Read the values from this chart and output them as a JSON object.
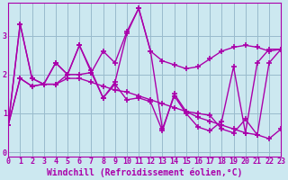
{
  "xlabel": "Windchill (Refroidissement éolien,°C)",
  "bg_color": "#cce8f0",
  "line_color": "#aa00aa",
  "grid_color": "#99bbcc",
  "x_ticks": [
    0,
    1,
    2,
    3,
    4,
    5,
    6,
    7,
    8,
    9,
    10,
    11,
    12,
    13,
    14,
    15,
    16,
    17,
    18,
    19,
    20,
    21,
    22,
    23
  ],
  "y_ticks": [
    0,
    1,
    2,
    3
  ],
  "xlim": [
    0,
    23
  ],
  "ylim": [
    -0.1,
    3.85
  ],
  "series_x": [
    [
      0,
      1,
      2,
      3,
      4,
      5,
      6,
      7,
      8,
      9,
      10,
      11,
      12,
      13,
      14,
      15,
      16,
      17,
      18,
      19,
      20,
      21,
      22,
      23
    ],
    [
      0,
      1,
      2,
      3,
      4,
      5,
      6,
      7,
      8,
      9,
      10,
      11,
      12,
      13,
      14,
      15,
      16,
      17,
      18,
      19,
      20,
      21,
      22,
      23
    ],
    [
      0,
      1,
      2,
      3,
      4,
      5,
      6,
      7,
      8,
      9,
      10,
      11,
      12,
      13,
      14,
      15,
      16,
      17,
      18,
      19,
      20,
      21,
      22,
      23
    ],
    [
      0,
      1,
      2,
      3,
      4,
      5,
      6,
      7,
      8,
      9,
      10,
      11,
      12,
      13,
      14,
      15,
      16,
      17,
      18,
      19,
      20,
      21,
      22,
      23
    ]
  ],
  "series": [
    [
      0.7,
      3.3,
      1.9,
      1.75,
      1.75,
      2.0,
      2.75,
      2.05,
      2.6,
      2.3,
      3.1,
      3.7,
      2.6,
      2.35,
      2.25,
      2.15,
      2.2,
      2.4,
      2.6,
      2.7,
      2.75,
      2.7,
      2.6,
      2.65
    ],
    [
      0.7,
      3.3,
      1.9,
      1.75,
      2.3,
      2.0,
      2.75,
      2.1,
      1.4,
      1.8,
      3.05,
      3.7,
      2.6,
      0.6,
      1.45,
      1.0,
      0.65,
      0.55,
      0.8,
      2.2,
      0.5,
      2.3,
      2.65,
      2.65
    ],
    [
      0.7,
      1.9,
      1.7,
      1.75,
      2.3,
      2.0,
      2.0,
      2.05,
      1.4,
      1.75,
      1.35,
      1.4,
      1.3,
      0.55,
      1.5,
      1.05,
      1.0,
      0.95,
      0.6,
      0.5,
      0.85,
      0.45,
      2.3,
      2.65
    ],
    [
      0.7,
      1.9,
      1.7,
      1.75,
      1.75,
      1.9,
      1.9,
      1.8,
      1.7,
      1.6,
      1.55,
      1.45,
      1.35,
      1.25,
      1.15,
      1.05,
      0.9,
      0.8,
      0.7,
      0.6,
      0.5,
      0.45,
      0.35,
      0.6
    ]
  ],
  "marker": "+",
  "markersize": 5,
  "markeredgewidth": 1.2,
  "linewidth": 1.0,
  "tick_fontsize": 6,
  "xlabel_fontsize": 7
}
